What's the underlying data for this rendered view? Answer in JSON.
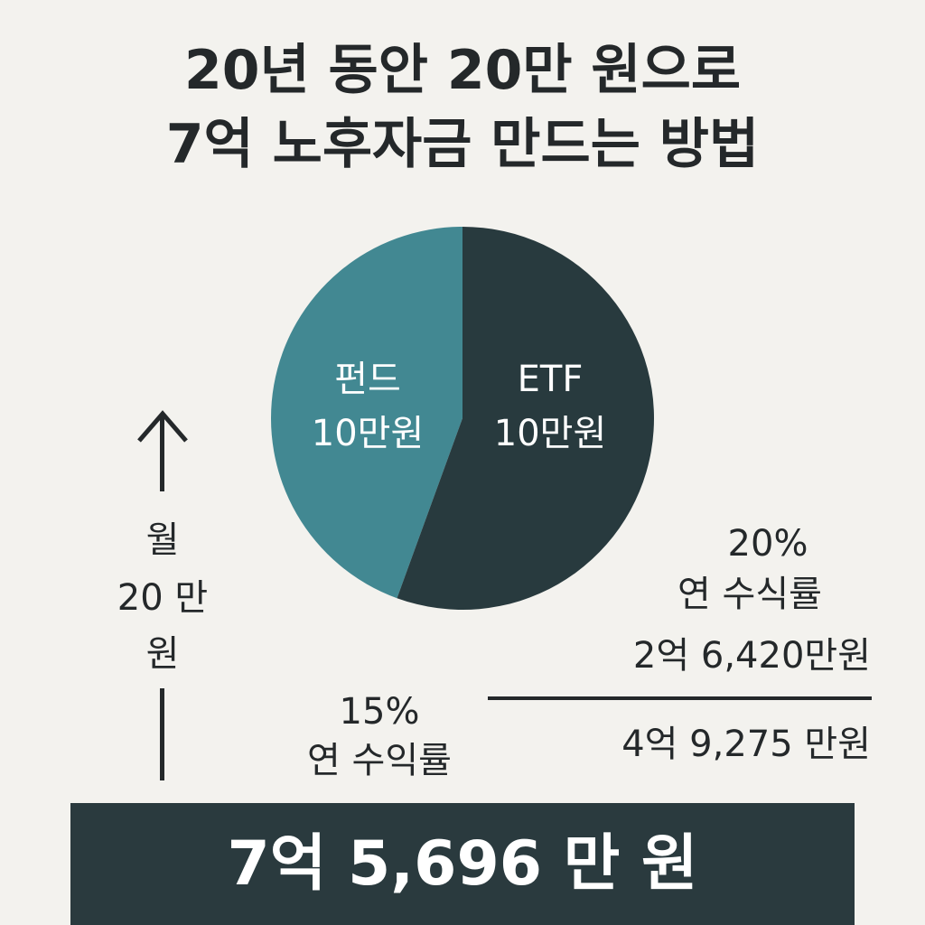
{
  "title": {
    "line1": "20년 동안 20만 원으로",
    "line2": "7억 노후자금 만드는 방법"
  },
  "colors": {
    "fund": "#428892",
    "etf": "#283a3e",
    "background": "#f3f2ee",
    "text": "#24282a",
    "total_box": "#2a3a3e"
  },
  "chart_data": {
    "type": "pie",
    "slices": [
      {
        "label_line1": "펀드",
        "label_line2": "10만원",
        "value": 10,
        "color": "#428892"
      },
      {
        "label_line1": "ETF",
        "label_line2": "10만원",
        "value": 10,
        "color": "#283a3e"
      }
    ]
  },
  "monthly": {
    "line1": "월",
    "line2": "20 만",
    "line3": "원"
  },
  "etf_result": {
    "rate": "20%",
    "rate_label": "연 수식률",
    "amount": "2억 6,420만원"
  },
  "fund_result": {
    "rate": "15%",
    "rate_label": "연 수익률",
    "amount": "4억 9,275 만원"
  },
  "total": "7억 5,696 만 원"
}
